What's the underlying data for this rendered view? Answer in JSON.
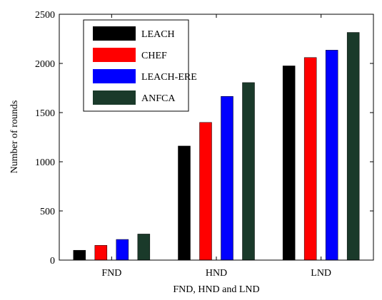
{
  "chart_data": {
    "type": "bar",
    "title": "",
    "xlabel": "FND, HND and LND",
    "ylabel": "Number of rounds",
    "categories": [
      "FND",
      "HND",
      "LND"
    ],
    "ylim": [
      0,
      2500
    ],
    "yticks": [
      0,
      500,
      1000,
      1500,
      2000,
      2500
    ],
    "grid": false,
    "legend_position": "top-left",
    "series": [
      {
        "name": "LEACH",
        "color": "#000000",
        "values": [
          100,
          1160,
          1975
        ]
      },
      {
        "name": "CHEF",
        "color": "#ff0000",
        "values": [
          150,
          1400,
          2060
        ]
      },
      {
        "name": "LEACH-ERE",
        "color": "#0000ff",
        "values": [
          210,
          1665,
          2135
        ]
      },
      {
        "name": "ANFCA",
        "color": "#1a3a2a",
        "values": [
          265,
          1805,
          2315
        ]
      }
    ]
  }
}
